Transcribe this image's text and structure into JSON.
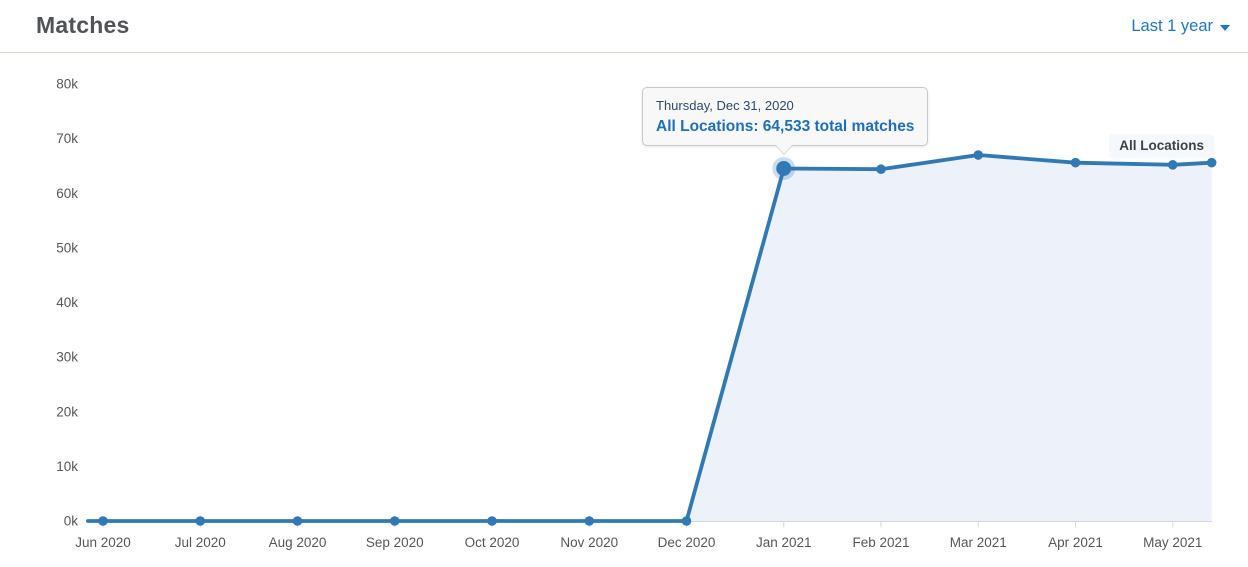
{
  "header": {
    "title": "Matches",
    "range_selector": {
      "label": "Last 1 year"
    }
  },
  "tooltip": {
    "date": "Thursday, Dec 31, 2020",
    "series": "All Locations",
    "separator": ": ",
    "value": "64,533 total matches"
  },
  "series_label": "All Locations",
  "colors": {
    "series": "#3079b5",
    "area_fill": "#ecf1fa",
    "halo": "#3079b5",
    "link": "#1b77c9",
    "tooltip_date": "#2d4a68",
    "tooltip_value": "#1c6fbf",
    "axis_line": "#cfd8e3",
    "label_text": "#54575b",
    "title_text": "#515356",
    "divider": "#d9d5c2",
    "series_label_bg": "rgba(244,248,253,0.92)"
  },
  "chart_data": {
    "type": "area",
    "title": "Matches",
    "x_ticks": [
      "Jun 2020",
      "Jul 2020",
      "Aug 2020",
      "Sep 2020",
      "Oct 2020",
      "Nov 2020",
      "Dec 2020",
      "Jan 2021",
      "Feb 2021",
      "Mar 2021",
      "Apr 2021",
      "May 2021"
    ],
    "y_ticks": [
      "0k",
      "10k",
      "20k",
      "30k",
      "40k",
      "50k",
      "60k",
      "70k",
      "80k"
    ],
    "ylim": [
      0,
      80000
    ],
    "grid": false,
    "legend_position": "floating top-right series label",
    "x_unit": "month tick index (0 = Jun 2020 tick, fractional = between ticks)",
    "series": [
      {
        "name": "All Locations",
        "points": [
          {
            "x": -0.155,
            "y": 0,
            "marker": false
          },
          {
            "x": 0,
            "y": 0
          },
          {
            "x": 1,
            "y": 0
          },
          {
            "x": 2,
            "y": 0
          },
          {
            "x": 3,
            "y": 0
          },
          {
            "x": 4,
            "y": 0
          },
          {
            "x": 5,
            "y": 0
          },
          {
            "x": 6,
            "y": 0
          },
          {
            "x": 7,
            "y": 64533,
            "highlighted": true,
            "tooltip_date": "Thursday, Dec 31, 2020"
          },
          {
            "x": 8,
            "y": 64400
          },
          {
            "x": 9,
            "y": 67000
          },
          {
            "x": 10,
            "y": 65600
          },
          {
            "x": 11,
            "y": 65200
          },
          {
            "x": 11.4,
            "y": 65600
          }
        ]
      }
    ]
  }
}
